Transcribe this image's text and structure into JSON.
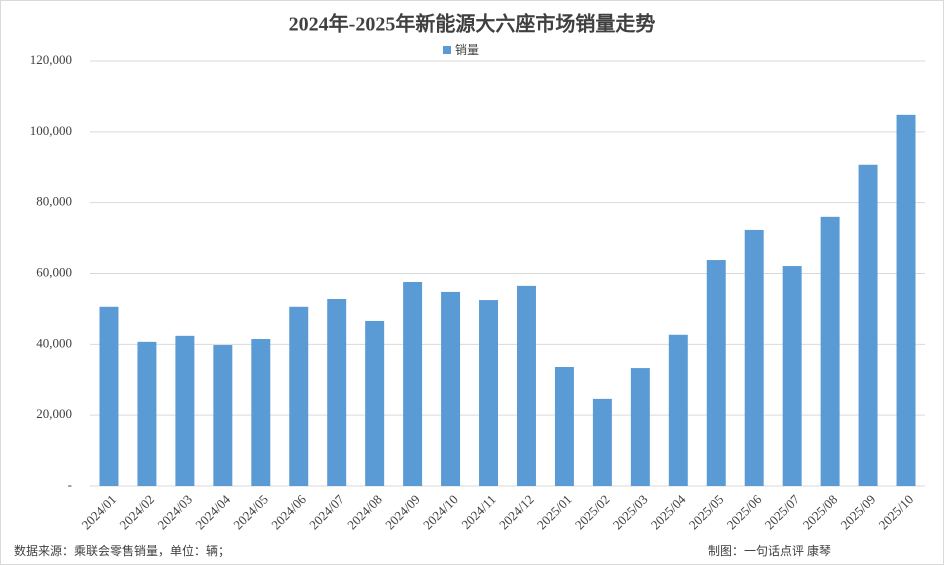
{
  "chart_data": {
    "type": "bar",
    "title": "2024年-2025年新能源大六座市场销量走势",
    "categories": [
      "2024/01",
      "2024/02",
      "2024/03",
      "2024/04",
      "2024/05",
      "2024/06",
      "2024/07",
      "2024/08",
      "2024/09",
      "2024/10",
      "2024/11",
      "2024/12",
      "2025/01",
      "2025/02",
      "2025/03",
      "2025/04",
      "2025/05",
      "2025/06",
      "2025/07",
      "2025/08",
      "2025/09",
      "2025/10"
    ],
    "series": [
      {
        "name": "销量",
        "color": "#5b9bd5",
        "values": [
          50600,
          40700,
          42400,
          39800,
          41500,
          50600,
          52800,
          46600,
          57600,
          54800,
          52500,
          56500,
          33600,
          24600,
          33300,
          42700,
          63800,
          72300,
          62100,
          76000,
          90700,
          104800
        ]
      }
    ],
    "ylim": [
      0,
      120000
    ],
    "yticks": [
      {
        "value": 0,
        "label": "-"
      },
      {
        "value": 20000,
        "label": "20,000"
      },
      {
        "value": 40000,
        "label": "40,000"
      },
      {
        "value": 60000,
        "label": "60,000"
      },
      {
        "value": 80000,
        "label": "80,000"
      },
      {
        "value": 100000,
        "label": "100,000"
      },
      {
        "value": 120000,
        "label": "120,000"
      }
    ],
    "grid": true,
    "legend": "top",
    "source": "数据来源：乘联会零售销量，单位：辆；",
    "credit": "制图：一句话点评 康琴"
  }
}
